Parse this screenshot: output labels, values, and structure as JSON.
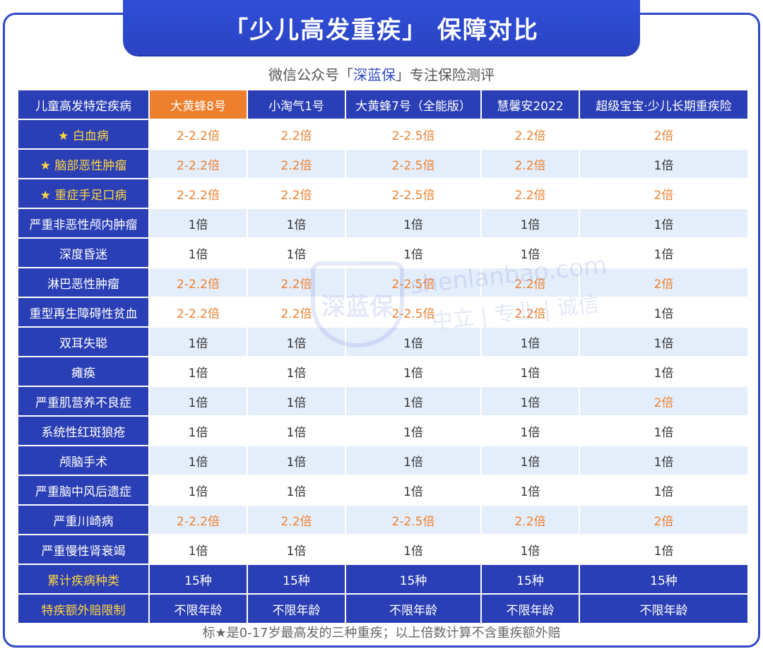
{
  "title": "「少儿高发重疾」 保障对比",
  "subtitle_prefix": "微信公众号「",
  "subtitle_brand": "深蓝保",
  "subtitle_suffix": "」专注保险测评",
  "watermark": {
    "logo": "深蓝保",
    "site": "shenlanbao.com",
    "slogan": "中立 | 专业 | 诚信"
  },
  "columns": [
    "儿童高发特定疾病",
    "大黄蜂8号",
    "小淘气1号",
    "大黄蜂7号（全能版）",
    "慧馨安2022",
    "超级宝宝·少儿长期重疾险"
  ],
  "rows": [
    {
      "name": "★ 白血病",
      "values": [
        "2-2.2倍",
        "2.2倍",
        "2-2.5倍",
        "2.2倍",
        "2倍"
      ]
    },
    {
      "name": "★ 脑部恶性肿瘤",
      "values": [
        "2-2.2倍",
        "2.2倍",
        "2-2.5倍",
        "2.2倍",
        "1倍"
      ]
    },
    {
      "name": "★ 重症手足口病",
      "values": [
        "2-2.2倍",
        "2.2倍",
        "2-2.5倍",
        "2.2倍",
        "2倍"
      ]
    },
    {
      "name": "严重非恶性颅内肿瘤",
      "values": [
        "1倍",
        "1倍",
        "1倍",
        "1倍",
        "1倍"
      ]
    },
    {
      "name": "深度昏迷",
      "values": [
        "1倍",
        "1倍",
        "1倍",
        "1倍",
        "1倍"
      ]
    },
    {
      "name": "淋巴恶性肿瘤",
      "values": [
        "2-2.2倍",
        "2.2倍",
        "2-2.5倍",
        "2.2倍",
        "2倍"
      ]
    },
    {
      "name": "重型再生障碍性贫血",
      "values": [
        "2-2.2倍",
        "2.2倍",
        "2-2.5倍",
        "2.2倍",
        "1倍"
      ]
    },
    {
      "name": "双耳失聪",
      "values": [
        "1倍",
        "1倍",
        "1倍",
        "1倍",
        "1倍"
      ]
    },
    {
      "name": "瘫痪",
      "values": [
        "1倍",
        "1倍",
        "1倍",
        "1倍",
        "1倍"
      ]
    },
    {
      "name": "严重肌营养不良症",
      "values": [
        "1倍",
        "1倍",
        "1倍",
        "1倍",
        "2倍"
      ]
    },
    {
      "name": "系统性红斑狼疮",
      "values": [
        "1倍",
        "1倍",
        "1倍",
        "1倍",
        "1倍"
      ]
    },
    {
      "name": "颅脑手术",
      "values": [
        "1倍",
        "1倍",
        "1倍",
        "1倍",
        "1倍"
      ]
    },
    {
      "name": "严重脑中风后遗症",
      "values": [
        "1倍",
        "1倍",
        "1倍",
        "1倍",
        "1倍"
      ]
    },
    {
      "name": "严重川崎病",
      "values": [
        "2-2.2倍",
        "2.2倍",
        "2-2.5倍",
        "2.2倍",
        "2倍"
      ]
    },
    {
      "name": "严重慢性肾衰竭",
      "values": [
        "1倍",
        "1倍",
        "1倍",
        "1倍",
        "1倍"
      ]
    }
  ],
  "footer_rows": [
    {
      "name": "累计疾病种类",
      "values": [
        "15种",
        "15种",
        "15种",
        "15种",
        "15种"
      ]
    },
    {
      "name": "特疾额外赔限制",
      "values": [
        "不限年龄",
        "不限年龄",
        "不限年龄",
        "不限年龄",
        "不限年龄"
      ]
    }
  ],
  "footnote": "标★是0-17岁最高发的三种重疾；以上倍数计算不含重疾额外赔",
  "colors": {
    "primary": "#2a3fb5",
    "highlight": "#ee7f2d",
    "star": "#ffd640",
    "alt_row": "#e4eefb"
  }
}
